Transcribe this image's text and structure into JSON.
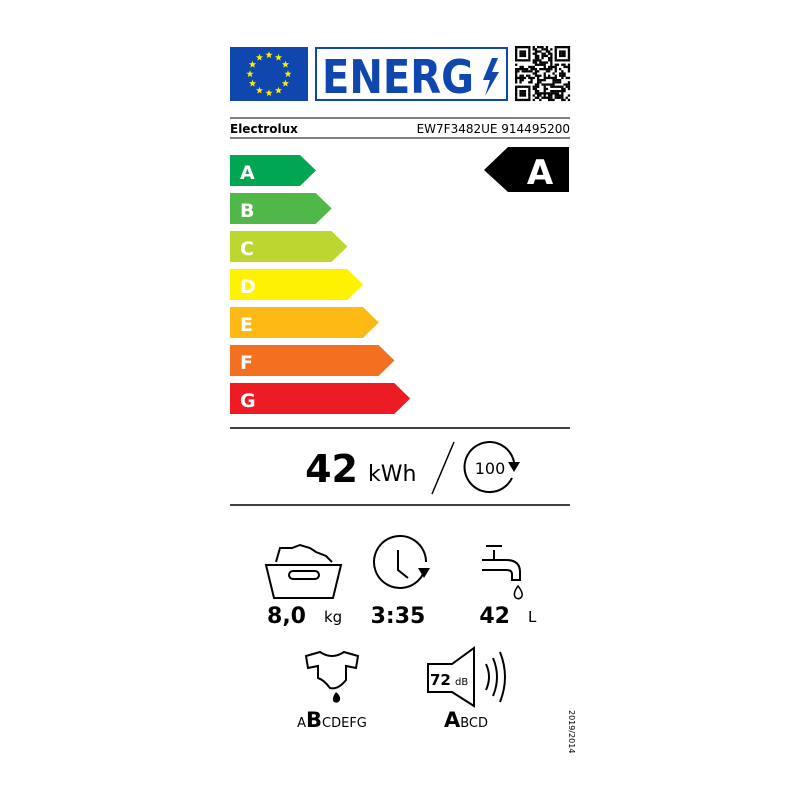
{
  "header": {
    "logo": "ENERG"
  },
  "supplier": "Electrolux",
  "model": "EW7F3482UE 914495200",
  "scale": [
    {
      "letter": "A",
      "color": "#00a651"
    },
    {
      "letter": "B",
      "color": "#50b848"
    },
    {
      "letter": "C",
      "color": "#bed630"
    },
    {
      "letter": "D",
      "color": "#fff200"
    },
    {
      "letter": "E",
      "color": "#fdb913"
    },
    {
      "letter": "F",
      "color": "#f37021"
    },
    {
      "letter": "G",
      "color": "#ed1c24"
    }
  ],
  "rating": "A",
  "energy": {
    "value": "42",
    "unit": "kWh",
    "cycles": "100"
  },
  "capacity": {
    "value": "8,0",
    "unit": "kg"
  },
  "duration": {
    "value": "3:35"
  },
  "water": {
    "value": "42",
    "unit": "L"
  },
  "spin_class": {
    "parts": [
      "A",
      "B",
      "CDEFG"
    ],
    "highlight": 1
  },
  "noise": {
    "value": "72",
    "unit": "dB",
    "parts": [
      "A",
      "BCD"
    ],
    "highlight": 0
  },
  "regulation": "2019/2014"
}
